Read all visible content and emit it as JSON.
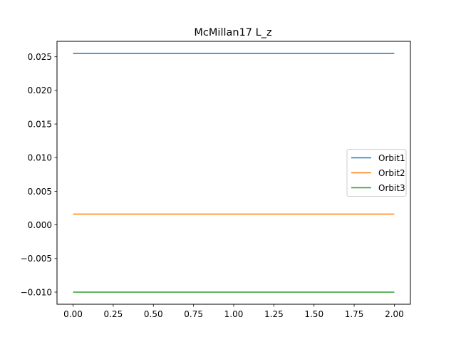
{
  "chart_data": {
    "type": "line",
    "title": "McMillan17 L_z",
    "xlabel": "",
    "ylabel": "",
    "xlim": [
      -0.1,
      2.1
    ],
    "ylim": [
      -0.0118,
      0.0273
    ],
    "xticks": [
      0.0,
      0.25,
      0.5,
      0.75,
      1.0,
      1.25,
      1.5,
      1.75,
      2.0
    ],
    "xtick_labels": [
      "0.00",
      "0.25",
      "0.50",
      "0.75",
      "1.00",
      "1.25",
      "1.50",
      "1.75",
      "2.00"
    ],
    "yticks": [
      -0.01,
      -0.005,
      0.0,
      0.005,
      0.01,
      0.015,
      0.02,
      0.025
    ],
    "ytick_labels": [
      "−0.010",
      "−0.005",
      "0.000",
      "0.005",
      "0.010",
      "0.015",
      "0.020",
      "0.025"
    ],
    "grid": false,
    "legend_position": "center-right",
    "series": [
      {
        "name": "Orbit1",
        "color": "#1f77b4",
        "x": [
          0.0,
          2.0
        ],
        "y": [
          0.0255,
          0.0255
        ]
      },
      {
        "name": "Orbit2",
        "color": "#ff7f0e",
        "x": [
          0.0,
          2.0
        ],
        "y": [
          0.0016,
          0.0016
        ]
      },
      {
        "name": "Orbit3",
        "color": "#2ca02c",
        "x": [
          0.0,
          2.0
        ],
        "y": [
          -0.01,
          -0.01
        ]
      }
    ]
  }
}
